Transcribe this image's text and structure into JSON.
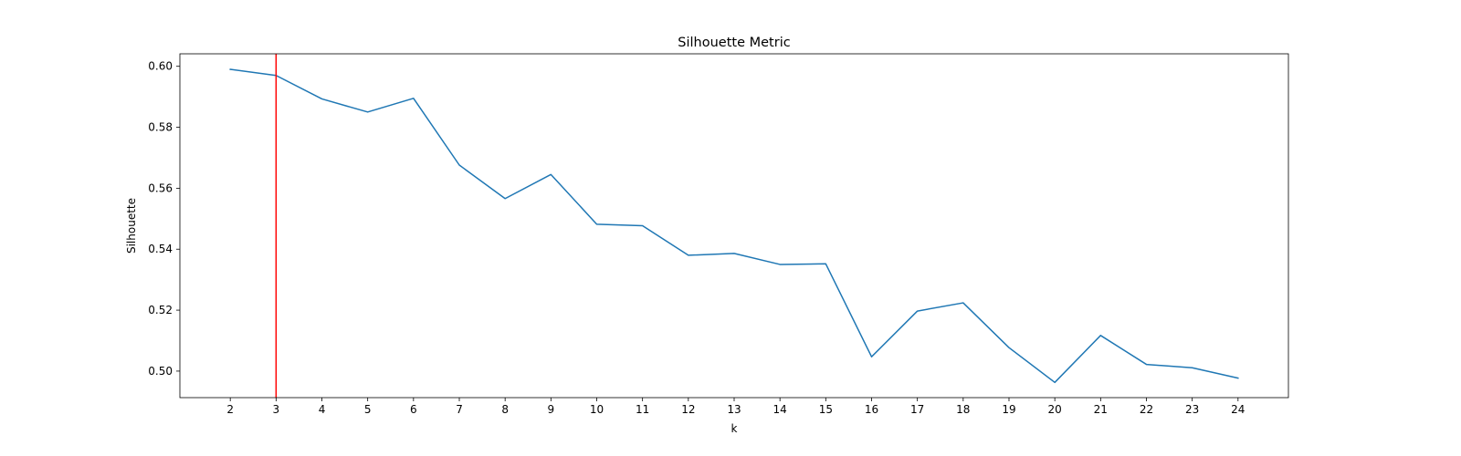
{
  "chart_data": {
    "type": "line",
    "title": "Silhouette Metric",
    "xlabel": "k",
    "ylabel": "Silhouette",
    "x": [
      2,
      3,
      4,
      5,
      6,
      7,
      8,
      9,
      10,
      11,
      12,
      13,
      14,
      15,
      16,
      17,
      18,
      19,
      20,
      21,
      22,
      23,
      24
    ],
    "x_tick_labels": [
      "2",
      "3",
      "4",
      "5",
      "6",
      "7",
      "8",
      "9",
      "10",
      "11",
      "12",
      "13",
      "14",
      "15",
      "16",
      "17",
      "18",
      "19",
      "20",
      "21",
      "22",
      "23",
      "24"
    ],
    "series": [
      {
        "values": [
          0.599,
          0.597,
          0.5893,
          0.585,
          0.5895,
          0.5676,
          0.5566,
          0.5645,
          0.5482,
          0.5477,
          0.538,
          0.5386,
          0.535,
          0.5352,
          0.5047,
          0.5197,
          0.5224,
          0.5077,
          0.4963,
          0.5117,
          0.5022,
          0.5011,
          0.4977
        ],
        "color": "#1f77b4"
      }
    ],
    "y_ticks": [
      0.5,
      0.52,
      0.54,
      0.56,
      0.58,
      0.6
    ],
    "y_tick_labels": [
      "0.50",
      "0.52",
      "0.54",
      "0.56",
      "0.58",
      "0.60"
    ],
    "xlim": [
      0.9,
      25.1
    ],
    "ylim": [
      0.4913,
      0.6041
    ],
    "vline": {
      "x": 3,
      "color": "#ff0000"
    },
    "grid": false,
    "legend": false
  }
}
